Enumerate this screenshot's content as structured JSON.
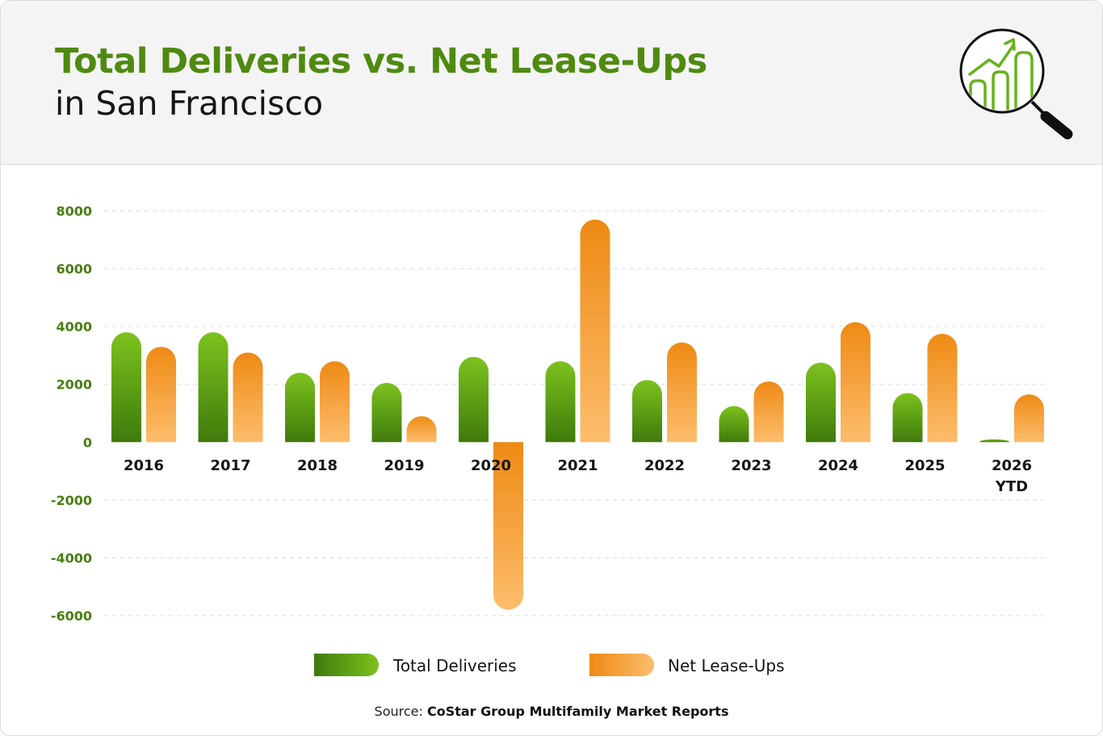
{
  "header": {
    "title": "Total Deliveries vs. Net Lease-Ups",
    "subtitle": "in San Francisco",
    "icon": "magnifier-growth-chart-icon"
  },
  "source": {
    "label": "Source:",
    "value": "CoStar Group Multifamily Market Reports"
  },
  "colors": {
    "deliveries_light": "#7dc21e",
    "deliveries_dark": "#3f7a0c",
    "leaseups_dark": "#ee8a14",
    "leaseups_light": "#fdbd6d",
    "axis_label": "#4a7d12"
  },
  "chart_data": {
    "type": "bar",
    "title": "",
    "xlabel": "",
    "ylabel": "",
    "ylim": [
      -6000,
      8000
    ],
    "yticks": [
      "8000",
      "6000",
      "4000",
      "2000",
      "0",
      "-2000",
      "-4000",
      "-6000"
    ],
    "grid": true,
    "legend_position": "bottom-center",
    "categories": [
      "2016",
      "2017",
      "2018",
      "2019",
      "2020",
      "2021",
      "2022",
      "2023",
      "2024",
      "2025",
      "2026 YTD"
    ],
    "series": [
      {
        "name": "Total Deliveries",
        "values": [
          3800,
          3800,
          2400,
          2050,
          2950,
          2800,
          2150,
          1250,
          2750,
          1700,
          100
        ]
      },
      {
        "name": "Net Lease-Ups",
        "values": [
          3300,
          3100,
          2800,
          900,
          -5800,
          7700,
          3450,
          2100,
          4150,
          3750,
          1650
        ]
      }
    ]
  }
}
